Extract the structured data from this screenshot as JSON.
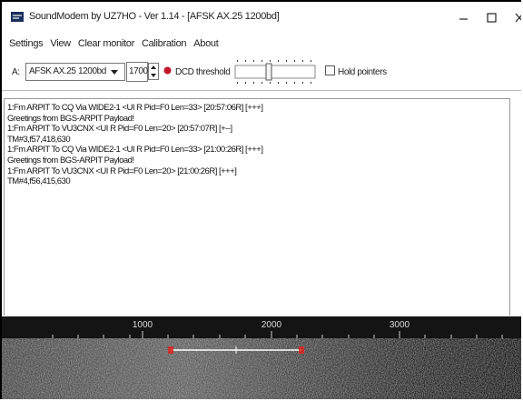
{
  "window": {
    "title": "SoundModem by UZ7HO - Ver 1.14 - [AFSK AX.25 1200bd]"
  },
  "menu": [
    "Settings",
    "View",
    "Clear monitor",
    "Calibration",
    "About"
  ],
  "toolbar": {
    "channel": "A:",
    "modem": "AFSK AX.25 1200bd",
    "frequency": "1700",
    "dcd_label": "DCD threshold",
    "hold_pointers": "Hold pointers"
  },
  "log": [
    "1:Fm ARPIT To CQ Via WIDE2-1 <UI R Pid=F0 Len=33> [20:57:06R] [+++]",
    "Greetings from BGS-ARPIT Payload!",
    "1:Fm ARPIT To VU3CNX <UI R Pid=F0 Len=20> [20:57:07R] [+--]",
    "TM#3,f57,418,630",
    "1:Fm ARPIT To CQ Via WIDE2-1 <UI R Pid=F0 Len=33> [21:00:26R] [+++]",
    "Greetings from BGS-ARPIT Payload!",
    "1:Fm ARPIT To VU3CNX <UI R Pid=F0 Len=20> [21:00:26R] [+++]",
    "TM#4,f56,415,630"
  ],
  "waterfall": {
    "scale_labels": [
      "1000",
      "2000",
      "3000"
    ]
  }
}
